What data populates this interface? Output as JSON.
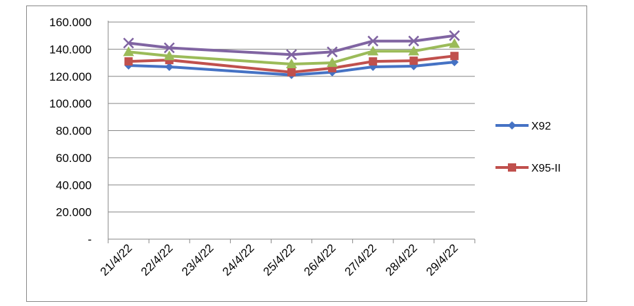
{
  "chart_data": {
    "type": "line",
    "title": "",
    "xlabel": "",
    "ylabel": "",
    "categories": [
      "21/4/22",
      "22/4/22",
      "23/4/22",
      "24/4/22",
      "25/4/22",
      "26/4/22",
      "27/4/22",
      "28/4/22",
      "29/4/22"
    ],
    "y_ticks": [
      "-",
      "20.000",
      "40.000",
      "60.000",
      "80.000",
      "100.000",
      "120.000",
      "140.000",
      "160.000"
    ],
    "ylim": [
      0,
      160000
    ],
    "grid": true,
    "legend_position": "right",
    "series": [
      {
        "name": "X92",
        "color": "#4572C4",
        "marker": "diamond",
        "show_in_legend": true,
        "values": [
          128000,
          127000,
          null,
          null,
          121000,
          123000,
          127000,
          127500,
          130500
        ]
      },
      {
        "name": "X95-II",
        "color": "#C0504D",
        "marker": "square",
        "show_in_legend": true,
        "values": [
          131000,
          132000,
          null,
          null,
          123000,
          126000,
          131000,
          131500,
          135000
        ]
      },
      {
        "name": "",
        "color": "#9BBB59",
        "marker": "triangle",
        "show_in_legend": false,
        "values": [
          138000,
          135000,
          null,
          null,
          129000,
          130000,
          138500,
          138500,
          144000
        ]
      },
      {
        "name": "",
        "color": "#8064A2",
        "marker": "x",
        "show_in_legend": false,
        "values": [
          144500,
          141000,
          null,
          null,
          136000,
          138000,
          146000,
          146000,
          150000
        ]
      }
    ]
  }
}
